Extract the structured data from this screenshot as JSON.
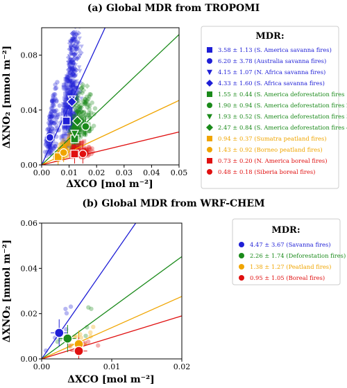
{
  "chart_data": [
    {
      "type": "scatter",
      "title": "(a) Global MDR from TROPOMI",
      "xlabel": "ΔXCO [mol m⁻²]",
      "ylabel": "ΔXNO₂ [mmol m⁻²]",
      "xlim": [
        0,
        0.05
      ],
      "ylim": [
        0,
        0.1
      ],
      "xticks": [
        "0.00",
        "0.01",
        "0.02",
        "0.03",
        "0.04",
        "0.05"
      ],
      "yticks": [
        "0.00",
        "0.04",
        "0.08"
      ],
      "ytick_values": [
        0,
        0.04,
        0.08
      ],
      "legend_title": "MDR:",
      "legend_placement": "right",
      "series": [
        {
          "name": "3.58 ± 1.13 (S. America savanna fires)",
          "color": "#1f1fd6",
          "marker": "square",
          "center": [
            0.009,
            0.032
          ],
          "slope": 3.58
        },
        {
          "name": "6.20 ± 3.78 (Australia savanna fires)",
          "color": "#1f1fd6",
          "marker": "circle",
          "center": [
            0.003,
            0.02
          ],
          "slope": 6.2
        },
        {
          "name": "4.15 ± 1.07 (N. Africa savanna fires)",
          "color": "#1f1fd6",
          "marker": "triangle-down",
          "center": [
            0.011,
            0.048
          ],
          "slope": 4.15
        },
        {
          "name": "4.33 ± 1.60 (S. Africa savanna fires)",
          "color": "#1f1fd6",
          "marker": "diamond",
          "center": [
            0.011,
            0.046
          ],
          "slope": 4.33
        },
        {
          "name": "1.55 ± 0.44 (S. America deforestation fires 1)",
          "color": "#1a8a1a",
          "marker": "square",
          "center": [
            0.012,
            0.019
          ],
          "slope": 1.55
        },
        {
          "name": "1.90 ± 0.94 (S. America deforestation fires 2)",
          "color": "#1a8a1a",
          "marker": "circle",
          "center": [
            0.016,
            0.028
          ],
          "slope": 1.9
        },
        {
          "name": "1.93 ± 0.52 (S. America deforestation fires 3)",
          "color": "#1a8a1a",
          "marker": "triangle-down",
          "center": [
            0.012,
            0.023
          ],
          "slope": 1.93
        },
        {
          "name": "2.47 ± 0.84 (S. America deforestation fires 4)",
          "color": "#1a8a1a",
          "marker": "diamond",
          "center": [
            0.013,
            0.032
          ],
          "slope": 2.47
        },
        {
          "name": "0.94 ± 0.37 (Sumatra peatland fires)",
          "color": "#f0a500",
          "marker": "square",
          "center": [
            0.006,
            0.006
          ],
          "slope": 0.94
        },
        {
          "name": "1.43 ± 0.92 (Borneo peatland fires)",
          "color": "#f0a500",
          "marker": "circle",
          "center": [
            0.008,
            0.009
          ],
          "slope": 1.43
        },
        {
          "name": "0.73 ± 0.20 (N. America boreal fires)",
          "color": "#e01010",
          "marker": "square",
          "center": [
            0.012,
            0.008
          ],
          "slope": 0.73
        },
        {
          "name": "0.48 ± 0.18 (Siberia boreal fires)",
          "color": "#e01010",
          "marker": "circle",
          "center": [
            0.015,
            0.008
          ],
          "slope": 0.48
        }
      ],
      "fit_lines": [
        {
          "color": "#1f1fd6",
          "slope": 4.33
        },
        {
          "color": "#1a8a1a",
          "slope": 1.9
        },
        {
          "color": "#f0a500",
          "slope": 0.94
        },
        {
          "color": "#e01010",
          "slope": 0.48
        }
      ]
    },
    {
      "type": "scatter",
      "title": "(b) Global MDR from WRF-CHEM",
      "xlabel": "ΔXCO [mol m⁻²]",
      "ylabel": "ΔXNO₂ [mmol m⁻²]",
      "xlim": [
        0,
        0.02
      ],
      "ylim": [
        0,
        0.06
      ],
      "xticks": [
        "0.00",
        "0.01",
        "0.02"
      ],
      "yticks": [
        "0.00",
        "0.02",
        "0.04",
        "0.06"
      ],
      "ytick_values": [
        0,
        0.02,
        0.04,
        0.06
      ],
      "legend_title": "MDR:",
      "legend_placement": "right",
      "series": [
        {
          "name": "4.47 ± 3.67 (Savanna fires)",
          "color": "#1f1fd6",
          "marker": "circle",
          "center": [
            0.0025,
            0.0115
          ],
          "slope": 4.47
        },
        {
          "name": "2.26 ± 1.74 (Deforestation fires)",
          "color": "#1a8a1a",
          "marker": "circle",
          "center": [
            0.0037,
            0.009
          ],
          "slope": 2.26
        },
        {
          "name": "1.38 ± 1.27 (Peatland fires)",
          "color": "#f0a500",
          "marker": "circle",
          "center": [
            0.0053,
            0.0065
          ],
          "slope": 1.38
        },
        {
          "name": "0.95 ± 1.05 (Boreal fires)",
          "color": "#e01010",
          "marker": "circle",
          "center": [
            0.0053,
            0.0035
          ],
          "slope": 0.95
        }
      ],
      "fit_lines": [
        {
          "color": "#1f1fd6",
          "slope": 4.47
        },
        {
          "color": "#1a8a1a",
          "slope": 2.26
        },
        {
          "color": "#f0a500",
          "slope": 1.38
        },
        {
          "color": "#e01010",
          "slope": 0.95
        }
      ]
    }
  ]
}
